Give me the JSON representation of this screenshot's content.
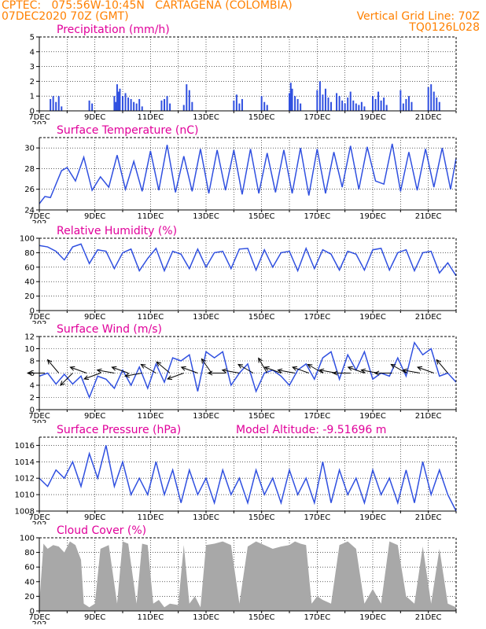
{
  "header": {
    "line1": "CPTEC:   075:56W-10:45N   CARTAGENA (COLOMBIA)",
    "line2": "07DEC2020 70Z (GMT)",
    "right1": "Vertical Grid Line: 70Z",
    "right2": "TQ0126L028"
  },
  "colors": {
    "header": "#ff8000",
    "title": "#e0009a",
    "line": "#3050e0",
    "cloud": "#a8a8a8",
    "arrow": "#000000"
  },
  "x_axis": {
    "start": "2020-12-07",
    "end": "2020-12-22",
    "tick_labels": [
      "7DEC",
      "9DEC",
      "11DEC",
      "13DEC",
      "15DEC",
      "17DEC",
      "19DEC",
      "21DEC"
    ],
    "cut_label": "202"
  },
  "chart_data": [
    {
      "id": "precip",
      "type": "bar",
      "title": "Precipitation (mm/h)",
      "ylim": [
        0,
        5
      ],
      "yticks": [
        0,
        1,
        2,
        3,
        4,
        5
      ],
      "x": [
        0.4,
        0.5,
        0.6,
        0.7,
        0.8,
        1.8,
        1.9,
        2.7,
        2.75,
        2.8,
        2.85,
        2.9,
        3.0,
        3.1,
        3.2,
        3.3,
        3.4,
        3.5,
        3.6,
        3.7,
        4.4,
        4.5,
        4.6,
        4.7,
        5.2,
        5.3,
        5.4,
        5.5,
        7.0,
        7.1,
        7.2,
        7.3,
        8.0,
        8.1,
        8.2,
        9.0,
        9.05,
        9.1,
        9.2,
        9.3,
        9.4,
        10.0,
        10.1,
        10.2,
        10.3,
        10.4,
        10.5,
        10.7,
        10.8,
        10.9,
        11.0,
        11.1,
        11.2,
        11.3,
        11.4,
        11.5,
        11.6,
        11.7,
        12.0,
        12.1,
        12.2,
        12.3,
        12.4,
        12.5,
        13.0,
        13.1,
        13.2,
        13.3,
        13.4,
        14.0,
        14.1,
        14.2,
        14.3,
        14.4
      ],
      "values": [
        0.8,
        1.0,
        0.6,
        1.0,
        0.3,
        0.7,
        0.5,
        1.0,
        0.6,
        1.8,
        1.3,
        1.5,
        1.0,
        1.2,
        0.9,
        0.8,
        0.6,
        0.5,
        0.8,
        0.3,
        0.7,
        0.8,
        1.0,
        0.5,
        0.4,
        1.8,
        1.4,
        0.6,
        0.7,
        1.1,
        0.5,
        0.8,
        1.0,
        0.6,
        0.4,
        1.2,
        1.9,
        1.5,
        1.0,
        0.8,
        0.5,
        1.4,
        2.0,
        1.1,
        1.5,
        0.9,
        0.6,
        1.2,
        1.0,
        0.7,
        0.5,
        0.9,
        1.3,
        0.7,
        0.5,
        0.4,
        0.6,
        0.3,
        1.0,
        0.8,
        1.3,
        0.7,
        0.9,
        0.4,
        1.4,
        0.5,
        0.8,
        1.0,
        0.6,
        1.6,
        1.8,
        1.3,
        0.9,
        0.6
      ]
    },
    {
      "id": "temp",
      "type": "line",
      "title": "Surface Temperature (nC)",
      "ylim": [
        24,
        31
      ],
      "yticks": [
        24,
        26,
        28,
        30
      ],
      "x": [
        0,
        0.2,
        0.4,
        0.6,
        0.8,
        1.0,
        1.3,
        1.6,
        1.9,
        2.2,
        2.5,
        2.8,
        3.1,
        3.4,
        3.7,
        4.0,
        4.3,
        4.6,
        4.9,
        5.2,
        5.5,
        5.8,
        6.1,
        6.4,
        6.7,
        7.0,
        7.3,
        7.6,
        7.9,
        8.2,
        8.5,
        8.8,
        9.1,
        9.4,
        9.7,
        10.0,
        10.3,
        10.6,
        10.9,
        11.2,
        11.5,
        11.8,
        12.1,
        12.4,
        12.7,
        13.0,
        13.3,
        13.6,
        13.9,
        14.2,
        14.5,
        14.8,
        15.0
      ],
      "values": [
        24.6,
        25.3,
        25.2,
        26.5,
        27.8,
        28.1,
        26.8,
        29.1,
        25.9,
        27.2,
        26.2,
        29.3,
        26.0,
        28.7,
        25.8,
        29.7,
        25.9,
        30.3,
        25.7,
        29.2,
        25.8,
        29.9,
        25.6,
        29.8,
        25.9,
        29.8,
        25.5,
        29.9,
        25.6,
        29.5,
        25.7,
        29.8,
        25.6,
        30.0,
        25.4,
        29.9,
        25.6,
        29.6,
        26.2,
        30.2,
        26.0,
        30.1,
        26.8,
        26.5,
        30.4,
        25.8,
        29.6,
        25.9,
        29.9,
        26.2,
        30.0,
        26.0,
        29.0
      ]
    },
    {
      "id": "rh",
      "type": "line",
      "title": "Relative Humidity (%)",
      "ylim": [
        0,
        100
      ],
      "yticks": [
        0,
        20,
        40,
        60,
        80,
        100
      ],
      "x": [
        0,
        0.3,
        0.6,
        0.9,
        1.2,
        1.5,
        1.8,
        2.1,
        2.4,
        2.7,
        3.0,
        3.3,
        3.6,
        3.9,
        4.2,
        4.5,
        4.8,
        5.1,
        5.4,
        5.7,
        6.0,
        6.3,
        6.6,
        6.9,
        7.2,
        7.5,
        7.8,
        8.1,
        8.4,
        8.7,
        9.0,
        9.3,
        9.6,
        9.9,
        10.2,
        10.5,
        10.8,
        11.1,
        11.4,
        11.7,
        12.0,
        12.3,
        12.6,
        12.9,
        13.2,
        13.5,
        13.8,
        14.1,
        14.4,
        14.7,
        15.0
      ],
      "values": [
        90,
        88,
        82,
        70,
        88,
        92,
        65,
        84,
        82,
        58,
        80,
        85,
        55,
        72,
        86,
        55,
        82,
        78,
        58,
        85,
        60,
        80,
        82,
        58,
        85,
        86,
        56,
        84,
        60,
        80,
        82,
        55,
        86,
        58,
        84,
        78,
        56,
        82,
        78,
        56,
        84,
        86,
        56,
        80,
        84,
        55,
        80,
        82,
        52,
        66,
        48
      ]
    },
    {
      "id": "wind",
      "type": "line",
      "title": "Surface Wind (m/s)",
      "ylim": [
        0,
        12
      ],
      "yticks": [
        0,
        2,
        4,
        6,
        8,
        10,
        12
      ],
      "x": [
        0,
        0.3,
        0.6,
        0.9,
        1.2,
        1.5,
        1.8,
        2.1,
        2.4,
        2.7,
        3.0,
        3.3,
        3.6,
        3.9,
        4.2,
        4.5,
        4.8,
        5.1,
        5.4,
        5.7,
        6.0,
        6.3,
        6.6,
        6.9,
        7.2,
        7.5,
        7.8,
        8.1,
        8.4,
        8.7,
        9.0,
        9.3,
        9.6,
        9.9,
        10.2,
        10.5,
        10.8,
        11.1,
        11.4,
        11.7,
        12.0,
        12.3,
        12.6,
        12.9,
        13.2,
        13.5,
        13.8,
        14.1,
        14.4,
        14.7,
        15.0
      ],
      "values": [
        5.5,
        6.0,
        4.2,
        5.8,
        4.2,
        5.5,
        2.0,
        5.5,
        5.0,
        3.5,
        6.5,
        4.0,
        7.0,
        3.5,
        7.5,
        4.5,
        8.5,
        8.0,
        9.0,
        3.0,
        9.5,
        8.5,
        9.5,
        4.0,
        6.0,
        7.5,
        3.0,
        6.0,
        6.5,
        5.5,
        4.0,
        6.5,
        7.5,
        5.0,
        8.5,
        9.5,
        5.0,
        9.0,
        6.5,
        9.5,
        5.0,
        6.0,
        5.5,
        8.5,
        5.5,
        11.0,
        9.0,
        10.0,
        5.5,
        6.0,
        4.5
      ],
      "barbs_x": [
        0.2,
        0.7,
        1.2,
        1.7,
        2.2,
        2.7,
        3.2,
        3.7,
        4.2,
        4.7,
        5.2,
        5.7,
        6.2,
        6.7,
        7.2,
        7.7,
        8.2,
        8.7,
        9.2,
        9.7,
        10.2,
        10.7,
        11.2,
        11.7,
        12.2,
        12.7,
        13.2,
        13.7,
        14.2,
        14.7
      ],
      "barbs_dir": [
        180,
        230,
        135,
        200,
        160,
        190,
        200,
        170,
        210,
        220,
        160,
        200,
        235,
        180,
        190,
        210,
        240,
        200,
        190,
        200,
        210,
        190,
        180,
        200,
        190,
        180,
        210,
        190,
        200,
        230
      ]
    },
    {
      "id": "pres",
      "type": "line",
      "title": "Surface Pressure (hPa)",
      "subtitle": "Model Altitude: -9.51696 m",
      "ylim": [
        1008,
        1017
      ],
      "yticks": [
        1008,
        1010,
        1012,
        1014,
        1016
      ],
      "x": [
        0,
        0.3,
        0.6,
        0.9,
        1.2,
        1.5,
        1.8,
        2.1,
        2.4,
        2.7,
        3.0,
        3.3,
        3.6,
        3.9,
        4.2,
        4.5,
        4.8,
        5.1,
        5.4,
        5.7,
        6.0,
        6.3,
        6.6,
        6.9,
        7.2,
        7.5,
        7.8,
        8.1,
        8.4,
        8.7,
        9.0,
        9.3,
        9.6,
        9.9,
        10.2,
        10.5,
        10.8,
        11.1,
        11.4,
        11.7,
        12.0,
        12.3,
        12.6,
        12.9,
        13.2,
        13.5,
        13.8,
        14.1,
        14.4,
        14.7,
        15.0
      ],
      "values": [
        1012,
        1011,
        1013,
        1012,
        1014,
        1011,
        1015,
        1012,
        1016,
        1011,
        1014,
        1010,
        1012,
        1010,
        1014,
        1010,
        1013,
        1009,
        1013,
        1010,
        1012,
        1009,
        1013,
        1010,
        1012,
        1009,
        1013,
        1010,
        1012,
        1009,
        1013,
        1010,
        1012,
        1009,
        1014,
        1009,
        1013,
        1010,
        1012,
        1009,
        1013,
        1010,
        1012,
        1009,
        1013,
        1009,
        1014,
        1010,
        1013,
        1010,
        1008
      ]
    },
    {
      "id": "cloud",
      "type": "area",
      "title": "Cloud Cover (%)",
      "ylim": [
        0,
        100
      ],
      "yticks": [
        0,
        20,
        40,
        60,
        80,
        100
      ],
      "x": [
        0,
        0.15,
        0.3,
        0.5,
        0.7,
        0.9,
        1.1,
        1.3,
        1.5,
        1.6,
        1.8,
        2.0,
        2.2,
        2.5,
        2.8,
        3.0,
        3.2,
        3.5,
        3.7,
        3.9,
        4.1,
        4.3,
        4.5,
        4.7,
        5.0,
        5.2,
        5.4,
        5.6,
        5.8,
        6.0,
        6.3,
        6.6,
        6.9,
        7.2,
        7.5,
        7.8,
        8.1,
        8.4,
        8.7,
        9.0,
        9.2,
        9.4,
        9.6,
        9.8,
        10.0,
        10.2,
        10.5,
        10.8,
        11.1,
        11.4,
        11.7,
        12.0,
        12.3,
        12.6,
        12.9,
        13.2,
        13.5,
        13.8,
        14.1,
        14.4,
        14.7,
        15.0
      ],
      "values": [
        10,
        92,
        85,
        90,
        88,
        80,
        95,
        90,
        70,
        10,
        5,
        10,
        85,
        90,
        10,
        95,
        92,
        10,
        92,
        90,
        10,
        15,
        5,
        10,
        8,
        90,
        10,
        20,
        5,
        90,
        92,
        95,
        90,
        10,
        88,
        95,
        90,
        85,
        88,
        90,
        95,
        92,
        90,
        10,
        20,
        15,
        10,
        90,
        95,
        85,
        10,
        30,
        10,
        95,
        90,
        20,
        10,
        88,
        10,
        85,
        10,
        5
      ]
    }
  ]
}
